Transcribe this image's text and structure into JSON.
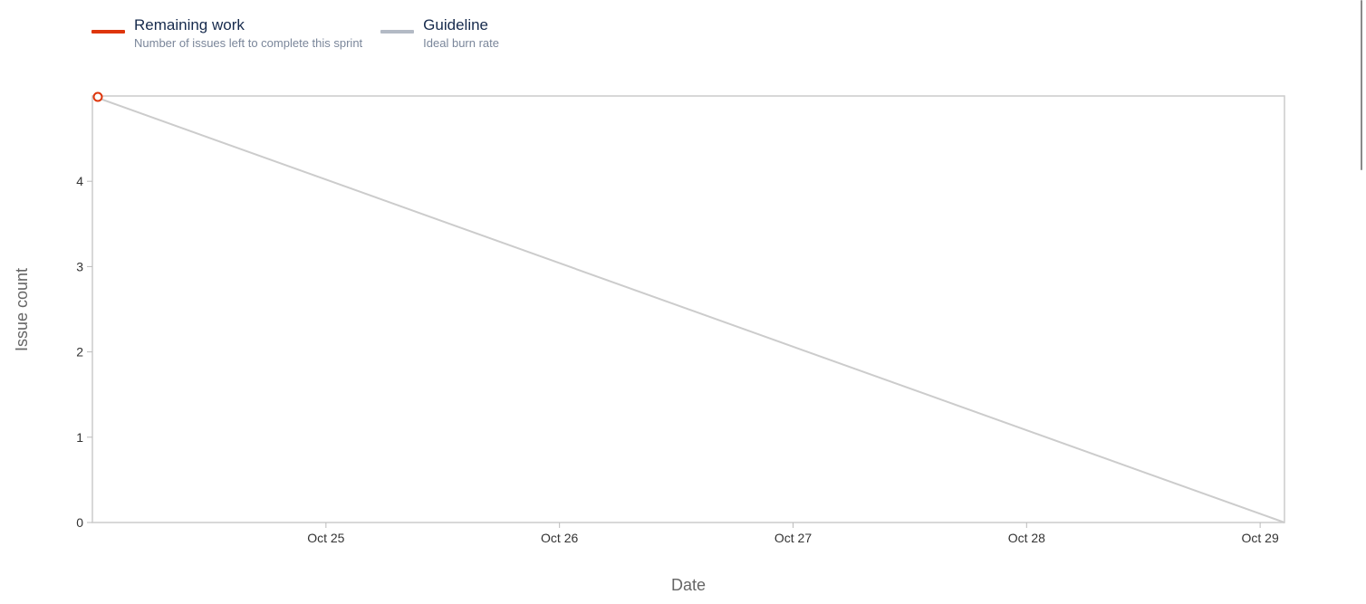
{
  "legend": {
    "items": [
      {
        "label": "Remaining work",
        "description": "Number of issues left to complete this sprint",
        "color": "#de350b"
      },
      {
        "label": "Guideline",
        "description": "Ideal burn rate",
        "color": "#b3bac5"
      }
    ]
  },
  "chart_data": {
    "type": "line",
    "xlabel": "Date",
    "ylabel": "Issue count",
    "x_type": "date",
    "xlim": [
      "Oct 24 00:00",
      "Oct 29 02:30"
    ],
    "ylim": [
      0,
      5
    ],
    "x_ticks": [
      "Oct 25",
      "Oct 26",
      "Oct 27",
      "Oct 28",
      "Oct 29"
    ],
    "y_ticks": [
      0,
      1,
      2,
      3,
      4
    ],
    "grid": false,
    "legend_position": "top-left",
    "series": [
      {
        "name": "Remaining work",
        "color": "#de350b",
        "points": [
          {
            "x": "Oct 24 00:00",
            "y": 5
          }
        ]
      },
      {
        "name": "Guideline",
        "color": "#cccccc",
        "points": [
          {
            "x": "Oct 24 00:00",
            "y": 5
          },
          {
            "x": "Oct 29 02:30",
            "y": 0
          }
        ]
      }
    ]
  }
}
